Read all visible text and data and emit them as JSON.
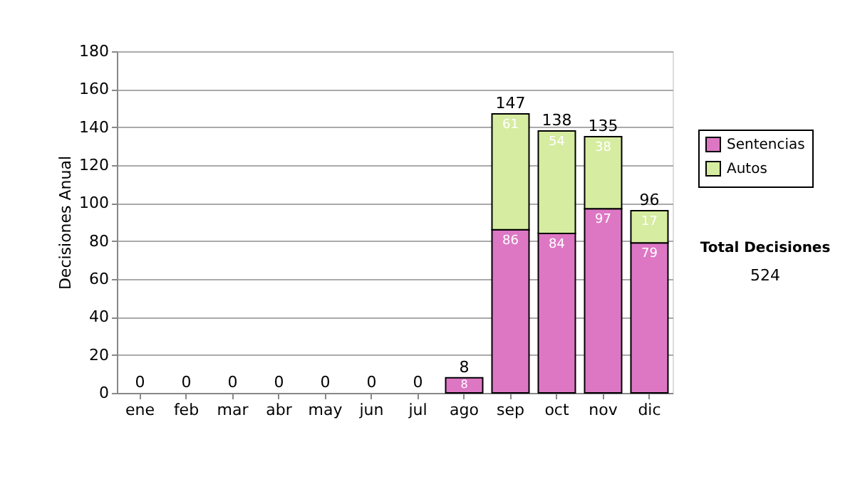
{
  "chart_data": {
    "type": "bar",
    "stacked": true,
    "ylabel": "Decisiones Anual",
    "categories": [
      "ene",
      "feb",
      "mar",
      "abr",
      "may",
      "jun",
      "jul",
      "ago",
      "sep",
      "oct",
      "nov",
      "dic"
    ],
    "series": [
      {
        "name": "Sentencias",
        "color": "#dd77c4",
        "values": [
          0,
          0,
          0,
          0,
          0,
          0,
          0,
          8,
          86,
          84,
          97,
          79
        ],
        "value_labels": [
          null,
          null,
          null,
          null,
          null,
          null,
          null,
          "8",
          "86",
          "84",
          "97",
          "79"
        ]
      },
      {
        "name": "Autos",
        "color": "#d6eca0",
        "values": [
          0,
          0,
          0,
          0,
          0,
          0,
          0,
          0,
          61,
          54,
          38,
          17
        ],
        "value_labels": [
          null,
          null,
          null,
          null,
          null,
          null,
          null,
          null,
          "61",
          "54",
          "38",
          "17"
        ]
      }
    ],
    "totals": [
      "0",
      "0",
      "0",
      "0",
      "0",
      "0",
      "0",
      "8",
      "147",
      "138",
      "135",
      "96"
    ],
    "ylim": [
      0,
      180
    ],
    "yticks": [
      0,
      20,
      40,
      60,
      80,
      100,
      120,
      140,
      160,
      180
    ],
    "grid": "y",
    "legend": "right",
    "annotations": [
      "Total Decisiones",
      "524"
    ]
  }
}
